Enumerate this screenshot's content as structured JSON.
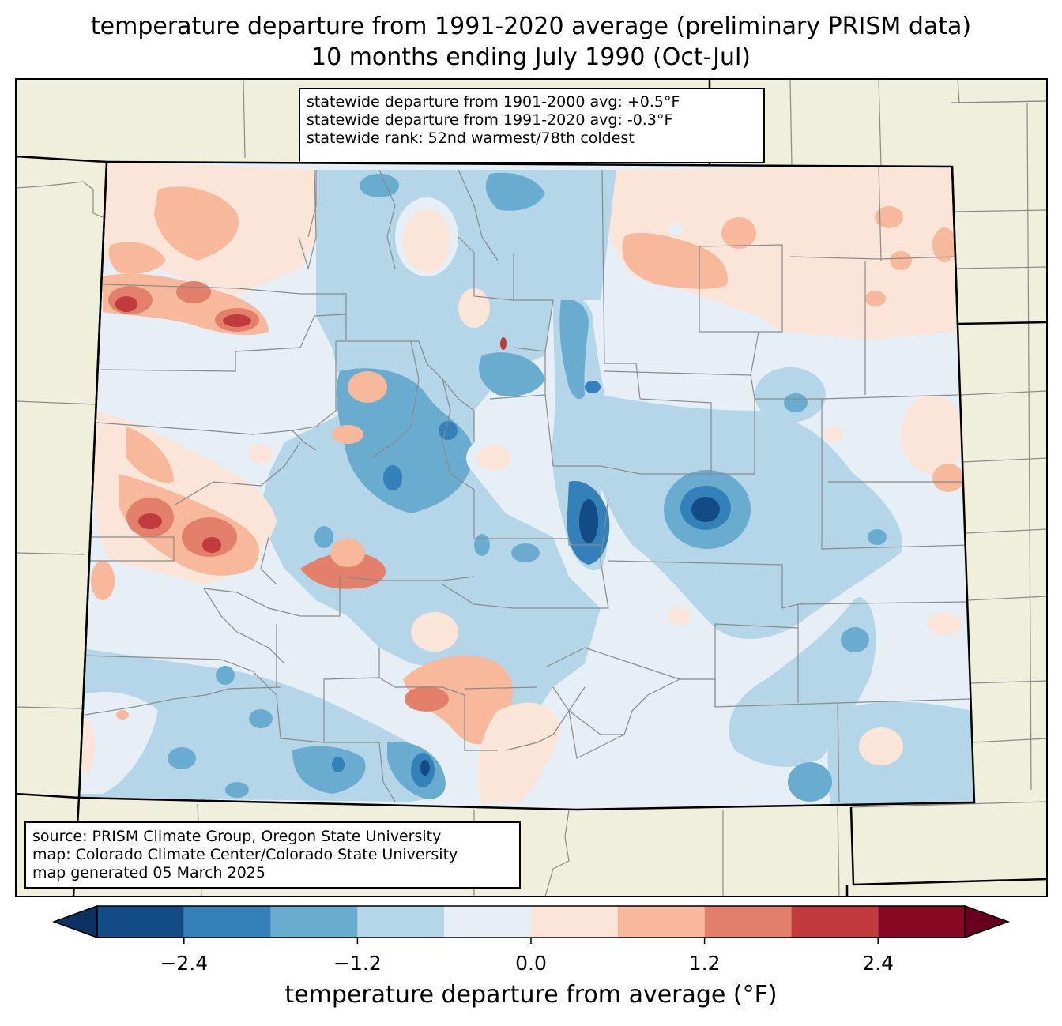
{
  "title": {
    "line1": "temperature departure from 1991-2020 average (preliminary PRISM data)",
    "line2": "10 months ending July 1990 (Oct-Jul)"
  },
  "stats": {
    "line1": "statewide departure from 1901-2000 avg: +0.5°F",
    "line2": "statewide departure from 1991-2020 avg: -0.3°F",
    "line3": "statewide rank: 52nd warmest/78th coldest"
  },
  "source": {
    "line1": "source: PRISM Climate Group, Oregon State University",
    "line2": "map: Colorado Climate Center/Colorado State University",
    "line3": "map generated 05 March 2025"
  },
  "colorbar": {
    "label": "temperature departure from average (°F)",
    "ticks": [
      "−2.4",
      "−1.2",
      "0.0",
      "1.2",
      "2.4"
    ],
    "bins": [
      {
        "lower": -3.0,
        "upper": -2.4,
        "color": "#134b87"
      },
      {
        "lower": -2.4,
        "upper": -1.8,
        "color": "#3480b9"
      },
      {
        "lower": -1.8,
        "upper": -1.2,
        "color": "#6aacd0"
      },
      {
        "lower": -1.2,
        "upper": -0.6,
        "color": "#b4d6e8"
      },
      {
        "lower": -0.6,
        "upper": 0.0,
        "color": "#e6eff5"
      },
      {
        "lower": 0.0,
        "upper": 0.6,
        "color": "#fbe5d8"
      },
      {
        "lower": 0.6,
        "upper": 1.2,
        "color": "#f7b89c"
      },
      {
        "lower": 1.2,
        "upper": 1.8,
        "color": "#e3806b"
      },
      {
        "lower": 1.8,
        "upper": 2.4,
        "color": "#c03a3e"
      },
      {
        "lower": 2.4,
        "upper": 3.0,
        "color": "#880a22"
      }
    ],
    "under_color": "#0b3260",
    "over_color": "#67001f"
  },
  "colors": {
    "land": "#efefdb",
    "background": "#e6eff5"
  }
}
